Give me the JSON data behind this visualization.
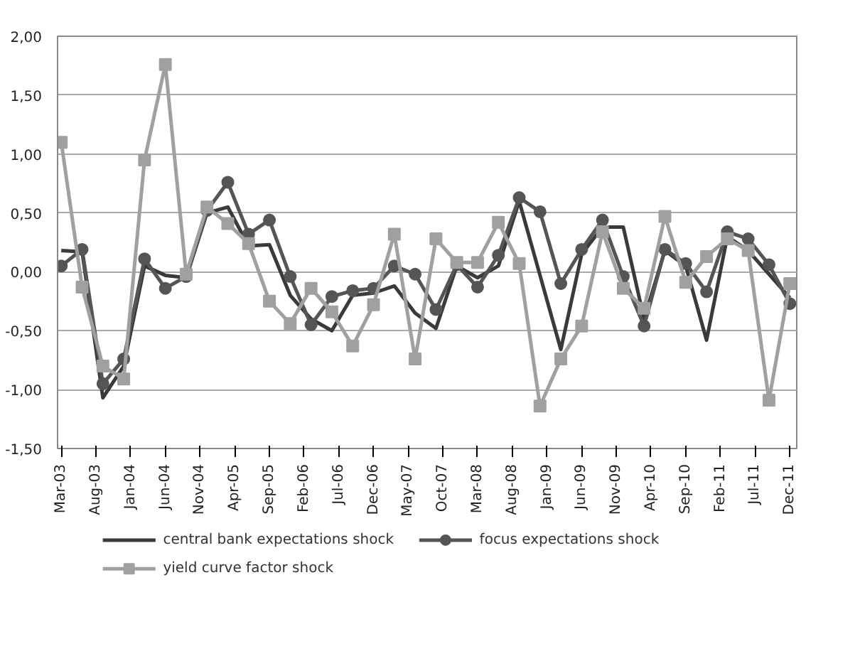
{
  "chart_data": {
    "type": "line",
    "x": [
      "2003-03",
      "2003-06",
      "2003-09",
      "2003-12",
      "2004-03",
      "2004-06",
      "2004-09",
      "2004-12",
      "2005-03",
      "2005-06",
      "2005-09",
      "2005-12",
      "2006-03",
      "2006-06",
      "2006-09",
      "2006-12",
      "2007-03",
      "2007-06",
      "2007-09",
      "2007-12",
      "2008-03",
      "2008-06",
      "2008-09",
      "2008-12",
      "2009-03",
      "2009-06",
      "2009-09",
      "2009-12",
      "2010-03",
      "2010-06",
      "2010-09",
      "2010-12",
      "2011-03",
      "2011-06",
      "2011-09",
      "2011-12"
    ],
    "series": [
      {
        "name": "central bank expectations shock",
        "color": "#3a3a3a",
        "marker": "none",
        "values": [
          0.18,
          0.17,
          -1.07,
          -0.8,
          0.05,
          -0.03,
          -0.05,
          0.5,
          0.55,
          0.22,
          0.23,
          -0.2,
          -0.4,
          -0.5,
          -0.2,
          -0.18,
          -0.12,
          -0.35,
          -0.48,
          0.05,
          -0.05,
          0.05,
          0.6,
          -0.03,
          -0.66,
          0.15,
          0.38,
          0.38,
          -0.4,
          0.18,
          0.05,
          -0.58,
          0.3,
          0.18,
          -0.02,
          -0.22
        ]
      },
      {
        "name": "focus expectations shock",
        "color": "#555555",
        "marker": "circle",
        "values": [
          0.05,
          0.19,
          -0.95,
          -0.74,
          0.11,
          -0.14,
          -0.04,
          0.52,
          0.76,
          0.32,
          0.44,
          -0.04,
          -0.45,
          -0.21,
          -0.16,
          -0.14,
          0.05,
          -0.02,
          -0.32,
          0.06,
          -0.13,
          0.14,
          0.63,
          0.51,
          -0.1,
          0.19,
          0.44,
          -0.04,
          -0.46,
          0.19,
          0.07,
          -0.17,
          0.34,
          0.28,
          0.06,
          -0.27
        ]
      },
      {
        "name": "yield curve factor shock",
        "color": "#a0a0a0",
        "marker": "square",
        "values": [
          1.1,
          -0.13,
          -0.8,
          -0.91,
          0.95,
          1.76,
          -0.02,
          0.55,
          0.41,
          0.24,
          -0.25,
          -0.44,
          -0.14,
          -0.34,
          -0.63,
          -0.28,
          0.32,
          -0.74,
          0.28,
          0.08,
          0.08,
          0.42,
          0.07,
          -1.14,
          -0.74,
          -0.46,
          0.34,
          -0.14,
          -0.31,
          0.47,
          -0.09,
          0.13,
          0.28,
          0.18,
          -1.09,
          -0.1
        ]
      }
    ],
    "xlim": [
      "2003-02-15",
      "2012-01-01"
    ],
    "xticks": [
      {
        "value": "2003-03",
        "label": "Mar-03"
      },
      {
        "value": "2003-08",
        "label": "Aug-03"
      },
      {
        "value": "2004-01",
        "label": "Jan-04"
      },
      {
        "value": "2004-06",
        "label": "Jun-04"
      },
      {
        "value": "2004-11",
        "label": "Nov-04"
      },
      {
        "value": "2005-04",
        "label": "Apr-05"
      },
      {
        "value": "2005-09",
        "label": "Sep-05"
      },
      {
        "value": "2006-02",
        "label": "Feb-06"
      },
      {
        "value": "2006-07",
        "label": "Jul-06"
      },
      {
        "value": "2006-12",
        "label": "Dec-06"
      },
      {
        "value": "2007-05",
        "label": "May-07"
      },
      {
        "value": "2007-10",
        "label": "Oct-07"
      },
      {
        "value": "2008-03",
        "label": "Mar-08"
      },
      {
        "value": "2008-08",
        "label": "Aug-08"
      },
      {
        "value": "2009-01",
        "label": "Jan-09"
      },
      {
        "value": "2009-06",
        "label": "Jun-09"
      },
      {
        "value": "2009-11",
        "label": "Nov-09"
      },
      {
        "value": "2010-04",
        "label": "Apr-10"
      },
      {
        "value": "2010-09",
        "label": "Sep-10"
      },
      {
        "value": "2011-02",
        "label": "Feb-11"
      },
      {
        "value": "2011-07",
        "label": "Jul-11"
      },
      {
        "value": "2011-12",
        "label": "Dec-11"
      }
    ],
    "ylim": [
      -1.5,
      2.0
    ],
    "yticks": [
      {
        "value": -1.5,
        "label": "-1,50"
      },
      {
        "value": -1.0,
        "label": "-1,00"
      },
      {
        "value": -0.5,
        "label": "-0,50"
      },
      {
        "value": 0,
        "label": "0,00"
      },
      {
        "value": 0.5,
        "label": "0,50"
      },
      {
        "value": 1.0,
        "label": "1,00"
      },
      {
        "value": 1.5,
        "label": "1,50"
      },
      {
        "value": 2.0,
        "label": "2,00"
      }
    ],
    "grid": "y",
    "legend": "bottom",
    "line_style": "solid"
  }
}
